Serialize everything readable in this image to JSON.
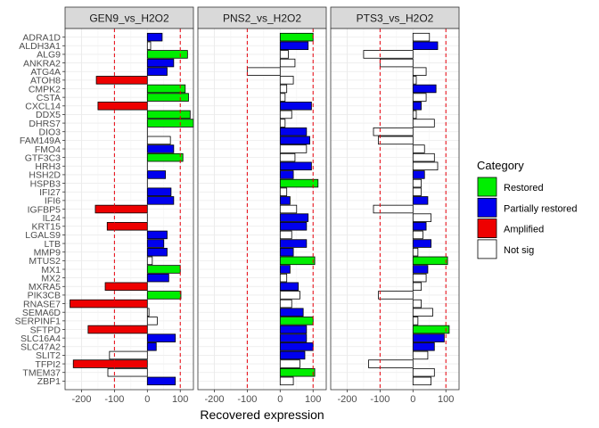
{
  "chart_data": {
    "type": "bar",
    "orientation": "horizontal",
    "xlabel": "Recovered expression",
    "ylabel": "",
    "xlim": [
      -250,
      140
    ],
    "xticks": [
      -200,
      -100,
      0,
      100
    ],
    "xtick_labels": [
      "-200",
      "-100",
      "0",
      "100"
    ],
    "reference_lines": [
      -100,
      100
    ],
    "grid": true,
    "legend": {
      "title": "Category",
      "position": "right",
      "entries": [
        {
          "label": "Restored",
          "color": "#00EE00"
        },
        {
          "label": "Partially restored",
          "color": "#0000EE"
        },
        {
          "label": "Amplified",
          "color": "#EE0000"
        },
        {
          "label": "Not sig",
          "color": "#FFFFFF"
        }
      ]
    },
    "genes": [
      "ZBP1",
      "TMEM37",
      "TFPI2",
      "SLIT2",
      "SLC47A2",
      "SLC16A4",
      "SFTPD",
      "SERPINF1",
      "SEMA6D",
      "RNASE7",
      "PIK3CB",
      "MXRA5",
      "MX2",
      "MX1",
      "MTUS2",
      "MMP9",
      "LTB",
      "LGALS9",
      "KRT15",
      "IL24",
      "IGFBP5",
      "IFI6",
      "IFI27",
      "HSPB3",
      "HSH2D",
      "HRH3",
      "GTF3C3",
      "FMO4",
      "FAM149A",
      "DIO3",
      "DHRS7",
      "DDX5",
      "CXCL14",
      "CSTA",
      "CMPK2",
      "ATOH8",
      "ATG4A",
      "ANKRA2",
      "ALG9",
      "ALDH3A1",
      "ADRA1D"
    ],
    "panels": [
      {
        "title": "GEN9_vs_H2O2",
        "values": [
          85,
          -120,
          -225,
          -115,
          27,
          85,
          -180,
          30,
          5,
          -235,
          102,
          -128,
          65,
          100,
          15,
          60,
          50,
          60,
          -122,
          0,
          -158,
          80,
          72,
          0,
          55,
          0,
          108,
          80,
          70,
          0,
          140,
          130,
          -150,
          125,
          115,
          -155,
          60,
          80,
          122,
          10,
          45
        ],
        "categories": [
          "Partially restored",
          "Not sig",
          "Amplified",
          "Not sig",
          "Partially restored",
          "Partially restored",
          "Amplified",
          "Not sig",
          "Not sig",
          "Amplified",
          "Restored",
          "Amplified",
          "Partially restored",
          "Restored",
          "Not sig",
          "Partially restored",
          "Partially restored",
          "Partially restored",
          "Amplified",
          "Not sig",
          "Amplified",
          "Partially restored",
          "Partially restored",
          "Not sig",
          "Partially restored",
          "Not sig",
          "Restored",
          "Partially restored",
          "Not sig",
          "Not sig",
          "Restored",
          "Restored",
          "Amplified",
          "Restored",
          "Restored",
          "Amplified",
          "Partially restored",
          "Partially restored",
          "Restored",
          "Not sig",
          "Partially restored"
        ]
      },
      {
        "title": "PNS2_vs_H2O2",
        "values": [
          40,
          105,
          60,
          75,
          100,
          80,
          80,
          100,
          70,
          35,
          60,
          55,
          20,
          30,
          105,
          40,
          80,
          35,
          80,
          85,
          50,
          30,
          20,
          115,
          40,
          95,
          45,
          80,
          90,
          80,
          15,
          35,
          95,
          15,
          20,
          40,
          -100,
          45,
          25,
          85,
          100
        ],
        "categories": [
          "Not sig",
          "Restored",
          "Not sig",
          "Partially restored",
          "Partially restored",
          "Partially restored",
          "Partially restored",
          "Restored",
          "Partially restored",
          "Not sig",
          "Not sig",
          "Partially restored",
          "Not sig",
          "Partially restored",
          "Restored",
          "Partially restored",
          "Partially restored",
          "Not sig",
          "Partially restored",
          "Partially restored",
          "Not sig",
          "Partially restored",
          "Not sig",
          "Restored",
          "Partially restored",
          "Partially restored",
          "Not sig",
          "Not sig",
          "Partially restored",
          "Partially restored",
          "Not sig",
          "Not sig",
          "Partially restored",
          "Not sig",
          "Not sig",
          "Not sig",
          "Not sig",
          "Not sig",
          "Not sig",
          "Partially restored",
          "Restored"
        ]
      },
      {
        "title": "PTS3_vs_H2O2",
        "values": [
          55,
          65,
          -135,
          45,
          65,
          95,
          110,
          15,
          60,
          25,
          -105,
          25,
          40,
          45,
          105,
          15,
          55,
          30,
          40,
          55,
          -120,
          45,
          25,
          25,
          35,
          75,
          65,
          35,
          -105,
          -120,
          65,
          10,
          25,
          40,
          70,
          10,
          40,
          -100,
          -150,
          75,
          50
        ],
        "categories": [
          "Not sig",
          "Not sig",
          "Not sig",
          "Not sig",
          "Partially restored",
          "Partially restored",
          "Restored",
          "Not sig",
          "Not sig",
          "Not sig",
          "Not sig",
          "Not sig",
          "Not sig",
          "Partially restored",
          "Restored",
          "Not sig",
          "Partially restored",
          "Not sig",
          "Partially restored",
          "Not sig",
          "Not sig",
          "Partially restored",
          "Not sig",
          "Not sig",
          "Partially restored",
          "Not sig",
          "Not sig",
          "Not sig",
          "Not sig",
          "Not sig",
          "Not sig",
          "Not sig",
          "Partially restored",
          "Not sig",
          "Partially restored",
          "Not sig",
          "Not sig",
          "Not sig",
          "Not sig",
          "Partially restored",
          "Not sig"
        ]
      }
    ]
  }
}
